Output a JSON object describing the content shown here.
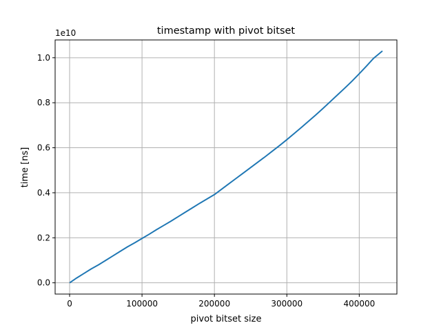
{
  "chart_data": {
    "type": "line",
    "title": "timestamp with pivot bitset",
    "xlabel": "pivot bitset size",
    "ylabel": "time [ns]",
    "y_offset_label": "1e10",
    "y_scale_factor": 10000000000,
    "xlim": [
      -20000,
      452000
    ],
    "ylim": [
      -0.05,
      1.079
    ],
    "xticks": [
      0,
      100000,
      200000,
      300000,
      400000
    ],
    "xtick_labels": [
      "0",
      "100000",
      "200000",
      "300000",
      "400000"
    ],
    "yticks": [
      0.0,
      0.2,
      0.4,
      0.6,
      0.8,
      1.0
    ],
    "ytick_labels": [
      "0.0",
      "0.2",
      "0.4",
      "0.6",
      "0.8",
      "1.0"
    ],
    "grid": true,
    "legend": "none",
    "colors": {
      "series": "#1f77b4",
      "grid": "#b0b0b0",
      "axes": "#000000"
    },
    "series": [
      {
        "x": [
          0,
          10000,
          20000,
          30000,
          40000,
          50000,
          60000,
          70000,
          80000,
          90000,
          100000,
          110000,
          120000,
          130000,
          140000,
          150000,
          160000,
          170000,
          180000,
          190000,
          200000,
          210000,
          220000,
          230000,
          240000,
          250000,
          260000,
          270000,
          280000,
          290000,
          300000,
          310000,
          320000,
          330000,
          340000,
          350000,
          360000,
          370000,
          380000,
          390000,
          400000,
          410000,
          420000,
          432000
        ],
        "y": [
          0.0,
          0.022,
          0.042,
          0.062,
          0.08,
          0.1,
          0.12,
          0.14,
          0.16,
          0.178,
          0.197,
          0.216,
          0.236,
          0.255,
          0.274,
          0.294,
          0.314,
          0.334,
          0.354,
          0.373,
          0.392,
          0.416,
          0.44,
          0.464,
          0.488,
          0.512,
          0.536,
          0.56,
          0.585,
          0.61,
          0.636,
          0.663,
          0.69,
          0.718,
          0.746,
          0.775,
          0.805,
          0.835,
          0.865,
          0.896,
          0.929,
          0.963,
          0.998,
          1.03
        ]
      }
    ]
  }
}
